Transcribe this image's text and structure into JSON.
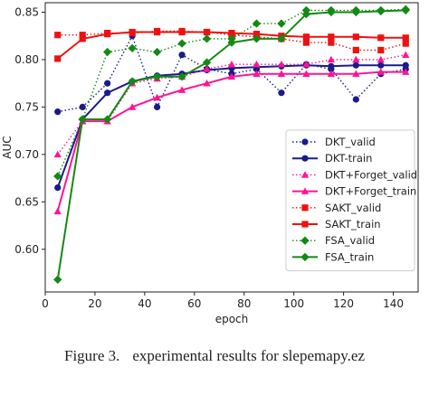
{
  "chart_data": {
    "type": "line",
    "title": "",
    "xlabel": "epoch",
    "ylabel": "AUC",
    "xlim": [
      0,
      150
    ],
    "ylim": [
      0.555,
      0.86
    ],
    "xticks": [
      0,
      20,
      40,
      60,
      80,
      100,
      120,
      140
    ],
    "yticks": [
      0.6,
      0.65,
      0.7,
      0.75,
      0.8,
      0.85
    ],
    "grid": false,
    "legend_position": "lower-right",
    "x": [
      5,
      15,
      25,
      35,
      45,
      55,
      65,
      75,
      85,
      95,
      105,
      115,
      125,
      135,
      145
    ],
    "series": [
      {
        "name": "DKT_valid",
        "color": "#1a1a8c",
        "marker": "circle",
        "dashed": true,
        "values": [
          0.745,
          0.75,
          0.775,
          0.825,
          0.75,
          0.805,
          0.79,
          0.785,
          0.79,
          0.765,
          0.795,
          0.79,
          0.758,
          0.785,
          0.79
        ]
      },
      {
        "name": "DKT-train",
        "color": "#1a1a8c",
        "marker": "circle",
        "dashed": false,
        "values": [
          0.665,
          0.737,
          0.765,
          0.777,
          0.783,
          0.785,
          0.789,
          0.791,
          0.792,
          0.793,
          0.794,
          0.793,
          0.794,
          0.794,
          0.794
        ]
      },
      {
        "name": "DKT+Forget_valid",
        "color": "#ff1493",
        "marker": "triangle",
        "dashed": true,
        "values": [
          0.7,
          0.735,
          0.735,
          0.775,
          0.78,
          0.782,
          0.79,
          0.795,
          0.795,
          0.795,
          0.795,
          0.8,
          0.8,
          0.8,
          0.805
        ]
      },
      {
        "name": "DKT+Forget_train",
        "color": "#ff1493",
        "marker": "triangle",
        "dashed": false,
        "values": [
          0.64,
          0.735,
          0.735,
          0.75,
          0.76,
          0.768,
          0.775,
          0.782,
          0.785,
          0.785,
          0.785,
          0.785,
          0.785,
          0.787,
          0.787
        ]
      },
      {
        "name": "SAKT_valid",
        "color": "#ee1111",
        "marker": "square",
        "dashed": true,
        "values": [
          0.826,
          0.826,
          0.828,
          0.828,
          0.83,
          0.83,
          0.829,
          0.826,
          0.824,
          0.822,
          0.818,
          0.818,
          0.81,
          0.81,
          0.817
        ]
      },
      {
        "name": "SAKT_train",
        "color": "#ee1111",
        "marker": "square",
        "dashed": false,
        "values": [
          0.801,
          0.822,
          0.827,
          0.829,
          0.829,
          0.829,
          0.829,
          0.828,
          0.827,
          0.825,
          0.824,
          0.824,
          0.824,
          0.823,
          0.823
        ]
      },
      {
        "name": "FSA_valid",
        "color": "#138a13",
        "marker": "diamond",
        "dashed": true,
        "values": [
          0.677,
          0.737,
          0.808,
          0.812,
          0.808,
          0.817,
          0.822,
          0.822,
          0.838,
          0.838,
          0.852,
          0.852,
          0.852,
          0.852,
          0.853
        ]
      },
      {
        "name": "FSA_train",
        "color": "#138a13",
        "marker": "diamond",
        "dashed": false,
        "values": [
          0.568,
          0.737,
          0.737,
          0.777,
          0.782,
          0.782,
          0.797,
          0.818,
          0.822,
          0.822,
          0.848,
          0.85,
          0.85,
          0.851,
          0.852
        ]
      }
    ]
  },
  "caption": {
    "label": "Figure 3.",
    "text": "experimental results for slepemapy.ez"
  }
}
